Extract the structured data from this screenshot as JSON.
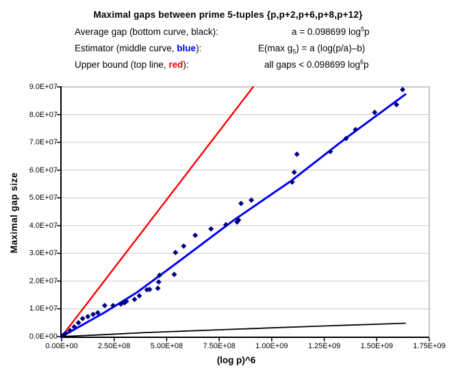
{
  "header": {
    "title": "Maximal gaps between prime 5-tuples {p,p+2,p+6,p+8,p+12}",
    "rows": [
      {
        "label_pre": "Average gap (bottom curve, black):",
        "color_word": "",
        "label_post": "",
        "formula_pre": "a = 0.098699 log",
        "formula_sup": "5",
        "formula_post": "p"
      },
      {
        "label_pre": "Estimator (middle curve, ",
        "color_word": "blue",
        "label_post": "):",
        "formula_pre": "E(max g",
        "formula_sub": "5",
        "formula_post": ") = a (log(p/a)–b)"
      },
      {
        "label_pre": "Upper bound (top line, ",
        "color_word": "red",
        "label_post": "):",
        "formula_pre": "all gaps < 0.098699 log",
        "formula_sup": "6",
        "formula_post": "p"
      }
    ]
  },
  "chart_data": {
    "type": "scatter",
    "title": "Maximal gaps between prime 5-tuples {p,p+2,p+6,p+8,p+12}",
    "xlabel": "(log p)^6",
    "ylabel": "Maximal gap size",
    "xlim": [
      0,
      1750000000
    ],
    "ylim": [
      0,
      90000000
    ],
    "grid": "horizontal",
    "legend_position": "none",
    "x_ticks": [
      "0.00E+00",
      "2.50E+08",
      "5.00E+08",
      "7.50E+08",
      "1.00E+09",
      "1.25E+09",
      "1.50E+09",
      "1.75E+09"
    ],
    "y_ticks": [
      "0.0E+00",
      "1.0E+07",
      "2.0E+07",
      "3.0E+07",
      "4.0E+07",
      "5.0E+07",
      "6.0E+07",
      "7.0E+07",
      "8.0E+07",
      "9.0E+07"
    ],
    "colors": {
      "points": "#000080",
      "estimator": "#0000ff",
      "upper_bound": "#ff0000",
      "average_gap": "#000000",
      "gridline": "#c9c9c9",
      "axis": "#000000",
      "plot_border": "#8c8c8c"
    },
    "series": [
      {
        "name": "observed-maximal-gaps",
        "kind": "scatter",
        "marker": "diamond",
        "color": "#000080",
        "points": [
          [
            6000000,
            400000
          ],
          [
            20000000,
            1200000
          ],
          [
            40000000,
            2200000
          ],
          [
            60000000,
            3500000
          ],
          [
            80000000,
            5000000
          ],
          [
            100000000,
            6500000
          ],
          [
            125000000,
            7200000
          ],
          [
            150000000,
            8000000
          ],
          [
            172000000,
            8600000
          ],
          [
            205000000,
            11200000
          ],
          [
            245000000,
            11200000
          ],
          [
            282000000,
            11700000
          ],
          [
            299000000,
            12200000
          ],
          [
            308000000,
            12700000
          ],
          [
            347000000,
            13400000
          ],
          [
            370000000,
            14700000
          ],
          [
            406000000,
            16900000
          ],
          [
            419000000,
            17000000
          ],
          [
            458000000,
            17400000
          ],
          [
            462000000,
            19700000
          ],
          [
            466000000,
            22100000
          ],
          [
            536000000,
            22400000
          ],
          [
            542000000,
            30300000
          ],
          [
            581000000,
            32600000
          ],
          [
            636000000,
            36500000
          ],
          [
            711000000,
            38800000
          ],
          [
            782000000,
            40300000
          ],
          [
            835000000,
            41300000
          ],
          [
            842000000,
            42000000
          ],
          [
            854000000,
            48000000
          ],
          [
            903000000,
            49200000
          ],
          [
            1097000000,
            55700000
          ],
          [
            1107000000,
            59200000
          ],
          [
            1120000000,
            65700000
          ],
          [
            1279000000,
            66700000
          ],
          [
            1354000000,
            71400000
          ],
          [
            1399000000,
            74600000
          ],
          [
            1490000000,
            80800000
          ],
          [
            1594000000,
            83600000
          ],
          [
            1623000000,
            89000000
          ]
        ]
      },
      {
        "name": "upper-bound-line",
        "kind": "line",
        "color": "#ff0000",
        "width": 2.4,
        "points": [
          [
            0,
            0
          ],
          [
            911860000,
            90000000
          ]
        ]
      },
      {
        "name": "estimator-line",
        "kind": "line",
        "color": "#0000ff",
        "width": 3,
        "points": [
          [
            0,
            0
          ],
          [
            200000000,
            8500000
          ],
          [
            360000000,
            16000000
          ],
          [
            560000000,
            27200000
          ],
          [
            820000000,
            42000000
          ],
          [
            1090000000,
            56000000
          ],
          [
            1351000000,
            71400000
          ],
          [
            1636000000,
            87300000
          ]
        ]
      },
      {
        "name": "average-gap-line",
        "kind": "line",
        "color": "#000000",
        "width": 1.8,
        "points": [
          [
            0,
            0
          ],
          [
            200000000,
            700000
          ],
          [
            400000000,
            1450000
          ],
          [
            800000000,
            2600000
          ],
          [
            1200000000,
            3700000
          ],
          [
            1636000000,
            4800000
          ]
        ]
      }
    ]
  }
}
